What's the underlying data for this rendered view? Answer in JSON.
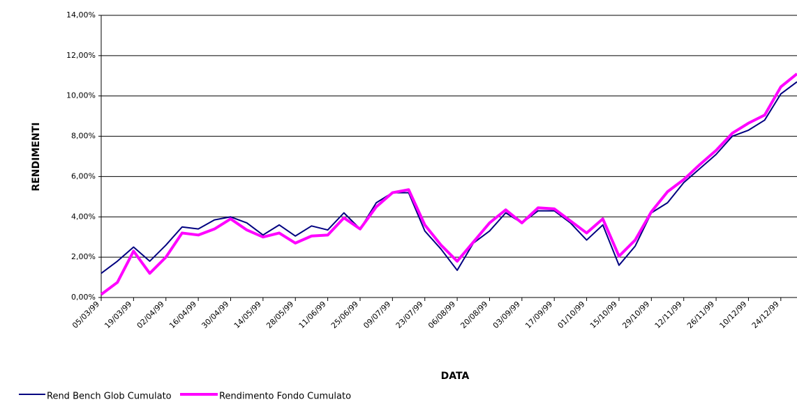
{
  "chart_data": {
    "type": "line",
    "x_label": "DATA",
    "y_label": "RENDIMENTI",
    "categories": [
      "05/03/99",
      null,
      "19/03/99",
      null,
      "02/04/99",
      null,
      "16/04/99",
      null,
      "30/04/99",
      null,
      "14/05/99",
      null,
      "28/05/99",
      null,
      "11/06/99",
      null,
      "25/06/99",
      null,
      "09/07/99",
      null,
      "23/07/99",
      null,
      "06/08/99",
      null,
      "20/08/99",
      null,
      "03/09/99",
      null,
      "17/09/99",
      null,
      "01/10/99",
      null,
      "15/10/99",
      null,
      "29/10/99",
      null,
      "12/11/99",
      null,
      "26/11/99",
      null,
      "10/12/99",
      null,
      "24/12/99",
      null
    ],
    "series": [
      {
        "name": "Rend Bench Glob Cumulato",
        "color": "#000080",
        "values": [
          1.2,
          1.8,
          2.5,
          1.8,
          2.6,
          3.5,
          3.4,
          3.85,
          4.0,
          3.7,
          3.1,
          3.6,
          3.05,
          3.55,
          3.35,
          4.2,
          3.4,
          4.7,
          5.2,
          5.2,
          3.3,
          2.4,
          1.35,
          2.7,
          3.3,
          4.2,
          3.7,
          4.3,
          4.3,
          3.7,
          2.85,
          3.6,
          1.6,
          2.55,
          4.2,
          4.7,
          5.7,
          6.4,
          7.1,
          8.0,
          8.3,
          8.8,
          10.1,
          10.7
        ]
      },
      {
        "name": "Rendimento Fondo Cumulato",
        "color": "#ff00ff",
        "values": [
          0.15,
          0.75,
          2.3,
          1.2,
          2.0,
          3.2,
          3.1,
          3.4,
          3.9,
          3.35,
          3.0,
          3.2,
          2.7,
          3.05,
          3.1,
          3.95,
          3.4,
          4.5,
          5.2,
          5.35,
          3.6,
          2.6,
          1.8,
          2.75,
          3.7,
          4.35,
          3.7,
          4.45,
          4.4,
          3.8,
          3.2,
          3.9,
          2.05,
          2.85,
          4.25,
          5.25,
          5.85,
          6.6,
          7.3,
          8.15,
          8.65,
          9.05,
          10.45,
          11.1
        ]
      }
    ],
    "ylim": [
      0,
      14
    ],
    "yticks": [
      {
        "value": 0,
        "label": "0,00%"
      },
      {
        "value": 2,
        "label": "2,00%"
      },
      {
        "value": 4,
        "label": "4,00%"
      },
      {
        "value": 6,
        "label": "6,00%"
      },
      {
        "value": 8,
        "label": "8,00%"
      },
      {
        "value": 10,
        "label": "10,00%"
      },
      {
        "value": 12,
        "label": "12,00%"
      },
      {
        "value": 14,
        "label": "14,00%"
      }
    ],
    "grid": true,
    "legend": "bottom-left"
  }
}
